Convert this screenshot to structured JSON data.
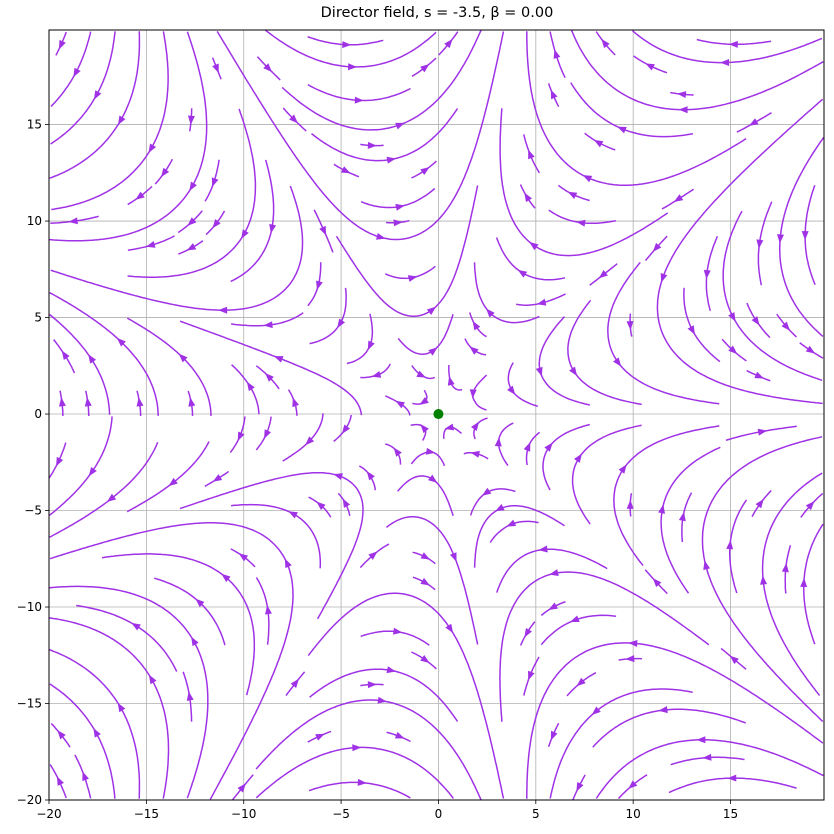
{
  "chart_data": {
    "type": "streamplot",
    "title": "Director field, s = -3.5, β = 0.00",
    "field": "director angle theta = s * atan2(y, x) + beta",
    "s": -3.5,
    "beta": 0.0,
    "xlim": [
      -20,
      19.8
    ],
    "ylim": [
      -20,
      19.9
    ],
    "xticks": [
      "−20",
      "−15",
      "−10",
      "−5",
      "0",
      "5",
      "10",
      "15"
    ],
    "xtick_values": [
      -20,
      -15,
      -10,
      -5,
      0,
      5,
      10,
      15
    ],
    "yticks": [
      "−20",
      "−15",
      "−10",
      "−5",
      "0",
      "5",
      "10",
      "15"
    ],
    "ytick_values": [
      -20,
      -15,
      -10,
      -5,
      0,
      5,
      10,
      15
    ],
    "grid": true,
    "defect_point": {
      "x": 0,
      "y": 0,
      "color": "#008000"
    },
    "stream_color": "#a032e6",
    "density": 1
  }
}
